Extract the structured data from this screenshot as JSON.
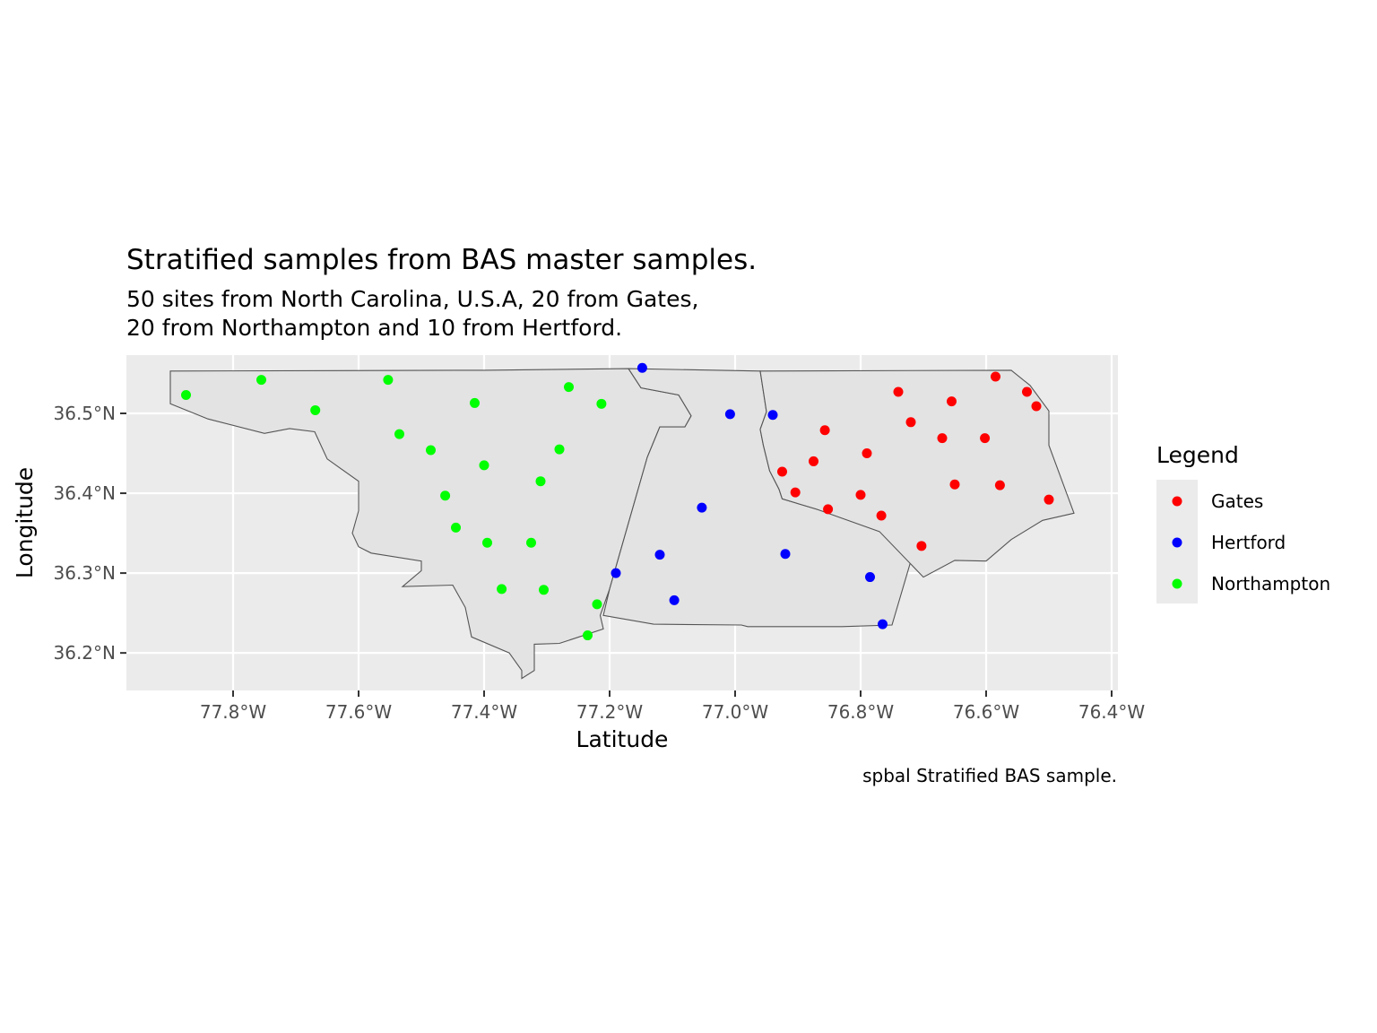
{
  "chart_data": {
    "type": "scatter",
    "title": "Stratified samples from BAS master samples.",
    "subtitle_lines": [
      "50 sites from North Carolina, U.S.A, 20 from Gates,",
      "20 from Northampton and 10 from Hertford."
    ],
    "xlabel": "Latitude",
    "ylabel": "Longitude",
    "caption": "spbal Stratified BAS sample.",
    "xlim": [
      -77.97,
      -76.39
    ],
    "ylim": [
      36.153,
      36.573
    ],
    "x_ticks": [
      {
        "value": -77.8,
        "label": "77.8°W"
      },
      {
        "value": -77.6,
        "label": "77.6°W"
      },
      {
        "value": -77.4,
        "label": "77.4°W"
      },
      {
        "value": -77.2,
        "label": "77.2°W"
      },
      {
        "value": -77.0,
        "label": "77.0°W"
      },
      {
        "value": -76.8,
        "label": "76.8°W"
      },
      {
        "value": -76.6,
        "label": "76.6°W"
      },
      {
        "value": -76.4,
        "label": "76.4°W"
      }
    ],
    "y_ticks": [
      {
        "value": 36.2,
        "label": "36.2°N"
      },
      {
        "value": 36.3,
        "label": "36.3°N"
      },
      {
        "value": 36.4,
        "label": "36.4°N"
      },
      {
        "value": 36.5,
        "label": "36.5°N"
      }
    ],
    "grid": true,
    "legend": {
      "title": "Legend",
      "position": "right",
      "entries": [
        "Gates",
        "Hertford",
        "Northampton"
      ]
    },
    "colors": {
      "Gates": "#ff0000",
      "Hertford": "#0000ff",
      "Northampton": "#00ff00",
      "panel": "#ebebeb",
      "county_fill": "#e3e3e3",
      "county_border": "#555555"
    },
    "boundaries": [
      {
        "name": "Northampton",
        "coords": [
          [
            -77.9,
            36.553
          ],
          [
            -77.4,
            36.554
          ],
          [
            -77.17,
            36.556
          ],
          [
            -77.15,
            36.532
          ],
          [
            -77.09,
            36.523
          ],
          [
            -77.07,
            36.497
          ],
          [
            -77.08,
            36.483
          ],
          [
            -77.12,
            36.483
          ],
          [
            -77.14,
            36.445
          ],
          [
            -77.2,
            36.28
          ],
          [
            -77.215,
            36.247
          ],
          [
            -77.21,
            36.23
          ],
          [
            -77.28,
            36.212
          ],
          [
            -77.32,
            36.211
          ],
          [
            -77.32,
            36.178
          ],
          [
            -77.34,
            36.168
          ],
          [
            -77.34,
            36.178
          ],
          [
            -77.36,
            36.2
          ],
          [
            -77.42,
            36.22
          ],
          [
            -77.43,
            36.257
          ],
          [
            -77.45,
            36.285
          ],
          [
            -77.53,
            36.283
          ],
          [
            -77.5,
            36.303
          ],
          [
            -77.5,
            36.315
          ],
          [
            -77.58,
            36.325
          ],
          [
            -77.6,
            36.333
          ],
          [
            -77.61,
            36.35
          ],
          [
            -77.6,
            36.378
          ],
          [
            -77.6,
            36.415
          ],
          [
            -77.65,
            36.443
          ],
          [
            -77.67,
            36.477
          ],
          [
            -77.71,
            36.481
          ],
          [
            -77.75,
            36.475
          ],
          [
            -77.84,
            36.493
          ],
          [
            -77.9,
            36.512
          ]
        ]
      },
      {
        "name": "Hertford",
        "coords": [
          [
            -77.17,
            36.556
          ],
          [
            -76.96,
            36.553
          ],
          [
            -76.95,
            36.502
          ],
          [
            -76.96,
            36.48
          ],
          [
            -76.955,
            36.46
          ],
          [
            -76.945,
            36.428
          ],
          [
            -76.93,
            36.405
          ],
          [
            -76.925,
            36.393
          ],
          [
            -76.87,
            36.38
          ],
          [
            -76.78,
            36.36
          ],
          [
            -76.72,
            36.315
          ],
          [
            -76.75,
            36.235
          ],
          [
            -76.83,
            36.233
          ],
          [
            -76.98,
            36.233
          ],
          [
            -76.99,
            36.235
          ],
          [
            -77.13,
            36.236
          ],
          [
            -77.21,
            36.247
          ],
          [
            -77.2,
            36.28
          ],
          [
            -77.14,
            36.445
          ],
          [
            -77.12,
            36.483
          ],
          [
            -77.08,
            36.483
          ],
          [
            -77.07,
            36.497
          ],
          [
            -77.09,
            36.523
          ],
          [
            -77.15,
            36.532
          ]
        ]
      },
      {
        "name": "Gates",
        "coords": [
          [
            -76.96,
            36.553
          ],
          [
            -76.56,
            36.554
          ],
          [
            -76.53,
            36.535
          ],
          [
            -76.5,
            36.503
          ],
          [
            -76.5,
            36.46
          ],
          [
            -76.46,
            36.375
          ],
          [
            -76.51,
            36.366
          ],
          [
            -76.56,
            36.342
          ],
          [
            -76.6,
            36.315
          ],
          [
            -76.65,
            36.316
          ],
          [
            -76.7,
            36.295
          ],
          [
            -76.77,
            36.352
          ],
          [
            -76.87,
            36.38
          ],
          [
            -76.925,
            36.393
          ],
          [
            -76.93,
            36.405
          ],
          [
            -76.945,
            36.428
          ],
          [
            -76.955,
            36.46
          ],
          [
            -76.96,
            36.48
          ],
          [
            -76.95,
            36.502
          ]
        ]
      }
    ],
    "series": [
      {
        "name": "Gates",
        "points": [
          [
            -76.585,
            36.546
          ],
          [
            -76.535,
            36.527
          ],
          [
            -76.52,
            36.509
          ],
          [
            -76.74,
            36.527
          ],
          [
            -76.655,
            36.515
          ],
          [
            -76.72,
            36.489
          ],
          [
            -76.67,
            36.469
          ],
          [
            -76.602,
            36.469
          ],
          [
            -76.857,
            36.479
          ],
          [
            -76.79,
            36.45
          ],
          [
            -76.875,
            36.44
          ],
          [
            -76.925,
            36.427
          ],
          [
            -76.904,
            36.401
          ],
          [
            -76.8,
            36.398
          ],
          [
            -76.65,
            36.411
          ],
          [
            -76.578,
            36.41
          ],
          [
            -76.5,
            36.392
          ],
          [
            -76.852,
            36.38
          ],
          [
            -76.767,
            36.372
          ],
          [
            -76.703,
            36.334
          ]
        ]
      },
      {
        "name": "Hertford",
        "points": [
          [
            -77.148,
            36.557
          ],
          [
            -77.008,
            36.499
          ],
          [
            -76.94,
            36.498
          ],
          [
            -77.053,
            36.382
          ],
          [
            -77.12,
            36.323
          ],
          [
            -76.92,
            36.324
          ],
          [
            -77.19,
            36.3
          ],
          [
            -76.785,
            36.295
          ],
          [
            -77.097,
            36.266
          ],
          [
            -76.765,
            36.236
          ]
        ]
      },
      {
        "name": "Northampton",
        "points": [
          [
            -77.875,
            36.523
          ],
          [
            -77.755,
            36.542
          ],
          [
            -77.553,
            36.542
          ],
          [
            -77.265,
            36.533
          ],
          [
            -77.415,
            36.513
          ],
          [
            -77.213,
            36.512
          ],
          [
            -77.669,
            36.504
          ],
          [
            -77.535,
            36.474
          ],
          [
            -77.485,
            36.454
          ],
          [
            -77.28,
            36.455
          ],
          [
            -77.4,
            36.435
          ],
          [
            -77.31,
            36.415
          ],
          [
            -77.462,
            36.397
          ],
          [
            -77.445,
            36.357
          ],
          [
            -77.395,
            36.338
          ],
          [
            -77.325,
            36.338
          ],
          [
            -77.372,
            36.28
          ],
          [
            -77.305,
            36.279
          ],
          [
            -77.22,
            36.261
          ],
          [
            -77.235,
            36.222
          ]
        ]
      }
    ]
  }
}
